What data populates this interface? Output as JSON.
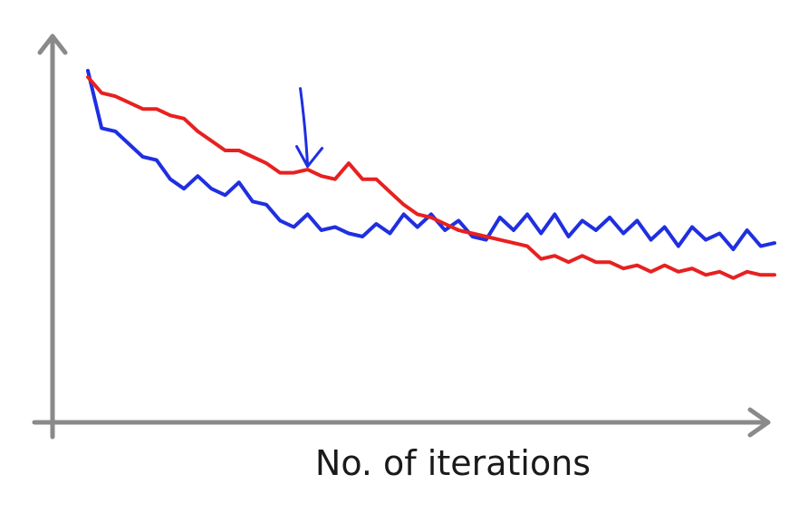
{
  "chart_data": {
    "type": "line",
    "title": "",
    "xlabel": "No. of iterations",
    "ylabel": "",
    "xlim": [
      0,
      100
    ],
    "ylim": [
      0,
      100
    ],
    "grid": false,
    "legend": "none",
    "x": [
      0,
      2,
      4,
      6,
      8,
      10,
      12,
      14,
      16,
      18,
      20,
      22,
      24,
      26,
      28,
      30,
      32,
      34,
      36,
      38,
      40,
      42,
      44,
      46,
      48,
      50,
      52,
      54,
      56,
      58,
      60,
      62,
      64,
      66,
      68,
      70,
      72,
      74,
      76,
      78,
      80,
      82,
      84,
      86,
      88,
      90,
      92,
      94,
      96,
      98,
      100
    ],
    "series": [
      {
        "color": "#1f2fe0",
        "values": [
          100,
          82,
          81,
          77,
          73,
          72,
          66,
          63,
          67,
          63,
          61,
          65,
          59,
          58,
          53,
          51,
          55,
          50,
          51,
          49,
          48,
          52,
          49,
          55,
          51,
          55,
          50,
          53,
          48,
          47,
          54,
          50,
          55,
          49,
          55,
          48,
          53,
          50,
          54,
          49,
          53,
          47,
          51,
          45,
          51,
          47,
          49,
          44,
          50,
          45,
          46
        ]
      },
      {
        "color": "#e82020",
        "values": [
          98,
          93,
          92,
          90,
          88,
          88,
          86,
          85,
          81,
          78,
          75,
          75,
          73,
          71,
          68,
          68,
          69,
          67,
          66,
          71,
          66,
          66,
          62,
          58,
          55,
          54,
          52,
          50,
          49,
          48,
          47,
          46,
          45,
          41,
          42,
          40,
          42,
          40,
          40,
          38,
          39,
          37,
          39,
          37,
          38,
          36,
          37,
          35,
          37,
          36,
          36
        ]
      }
    ],
    "annotations": [
      {
        "type": "arrow",
        "color": "#1f2fe0",
        "x": 32,
        "y": 70
      }
    ],
    "axis_color": "#8a8a8a"
  }
}
